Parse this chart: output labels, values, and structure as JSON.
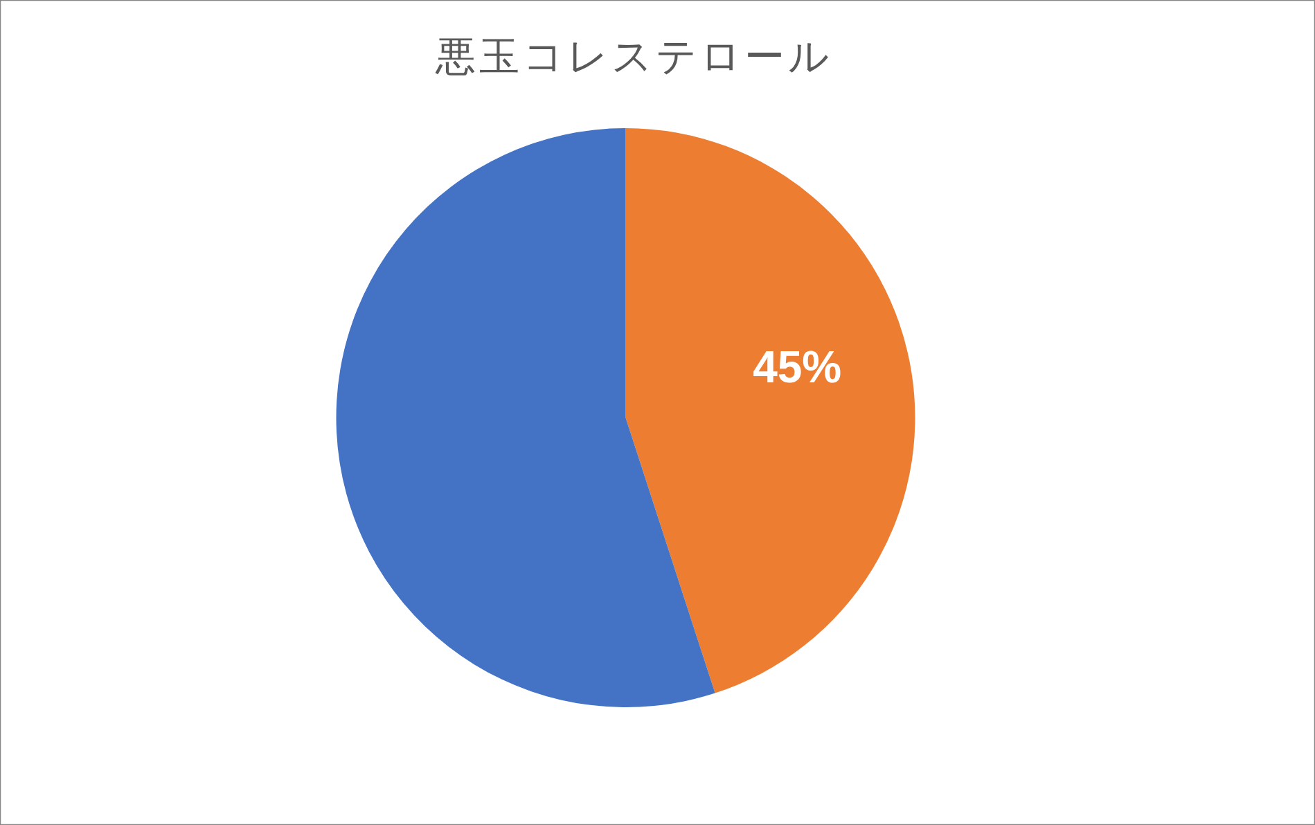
{
  "chart_data": {
    "type": "pie",
    "title": "悪玉コレステロール",
    "categories": [
      null,
      null
    ],
    "values": [
      45,
      55
    ],
    "colors": [
      "#ed7d31",
      "#4472c4"
    ],
    "value_labels": [
      "45%",
      null
    ]
  }
}
